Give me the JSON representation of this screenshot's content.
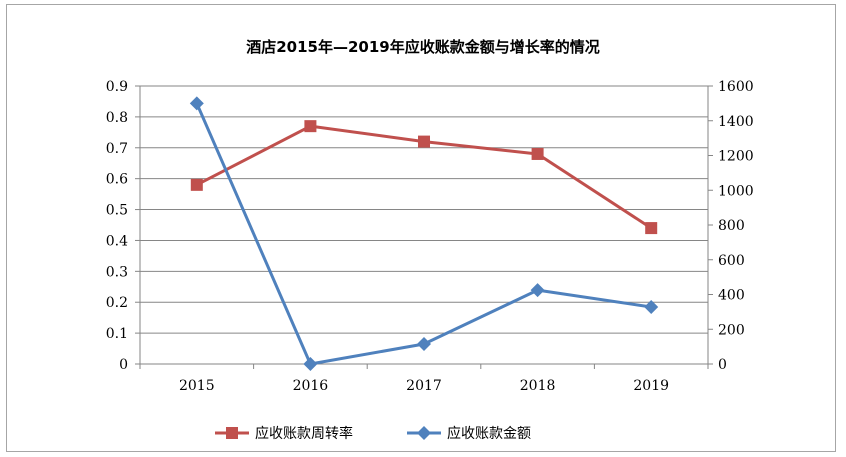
{
  "chart_data": {
    "type": "line",
    "title": "酒店2015年—2019年应收账款金额与增长率的情况",
    "categories": [
      "2015",
      "2016",
      "2017",
      "2018",
      "2019"
    ],
    "y_left": {
      "min": 0,
      "max": 0.9,
      "step": 0.1,
      "ticks": [
        "0",
        "0.1",
        "0.2",
        "0.3",
        "0.4",
        "0.5",
        "0.6",
        "0.7",
        "0.8",
        "0.9"
      ]
    },
    "y_right": {
      "min": 0,
      "max": 1600,
      "step": 200,
      "ticks": [
        "0",
        "200",
        "400",
        "600",
        "800",
        "1000",
        "1200",
        "1400",
        "1600"
      ]
    },
    "grid": true,
    "legend_position": "bottom",
    "series": [
      {
        "name": "应收账款周转率",
        "axis": "left",
        "color": "#c0504d",
        "marker": "square",
        "values": [
          0.58,
          0.77,
          0.72,
          0.68,
          0.44
        ]
      },
      {
        "name": "应收账款金额",
        "axis": "right",
        "color": "#4f81bd",
        "marker": "diamond",
        "values": [
          1500,
          0,
          115,
          425,
          328
        ]
      }
    ]
  }
}
